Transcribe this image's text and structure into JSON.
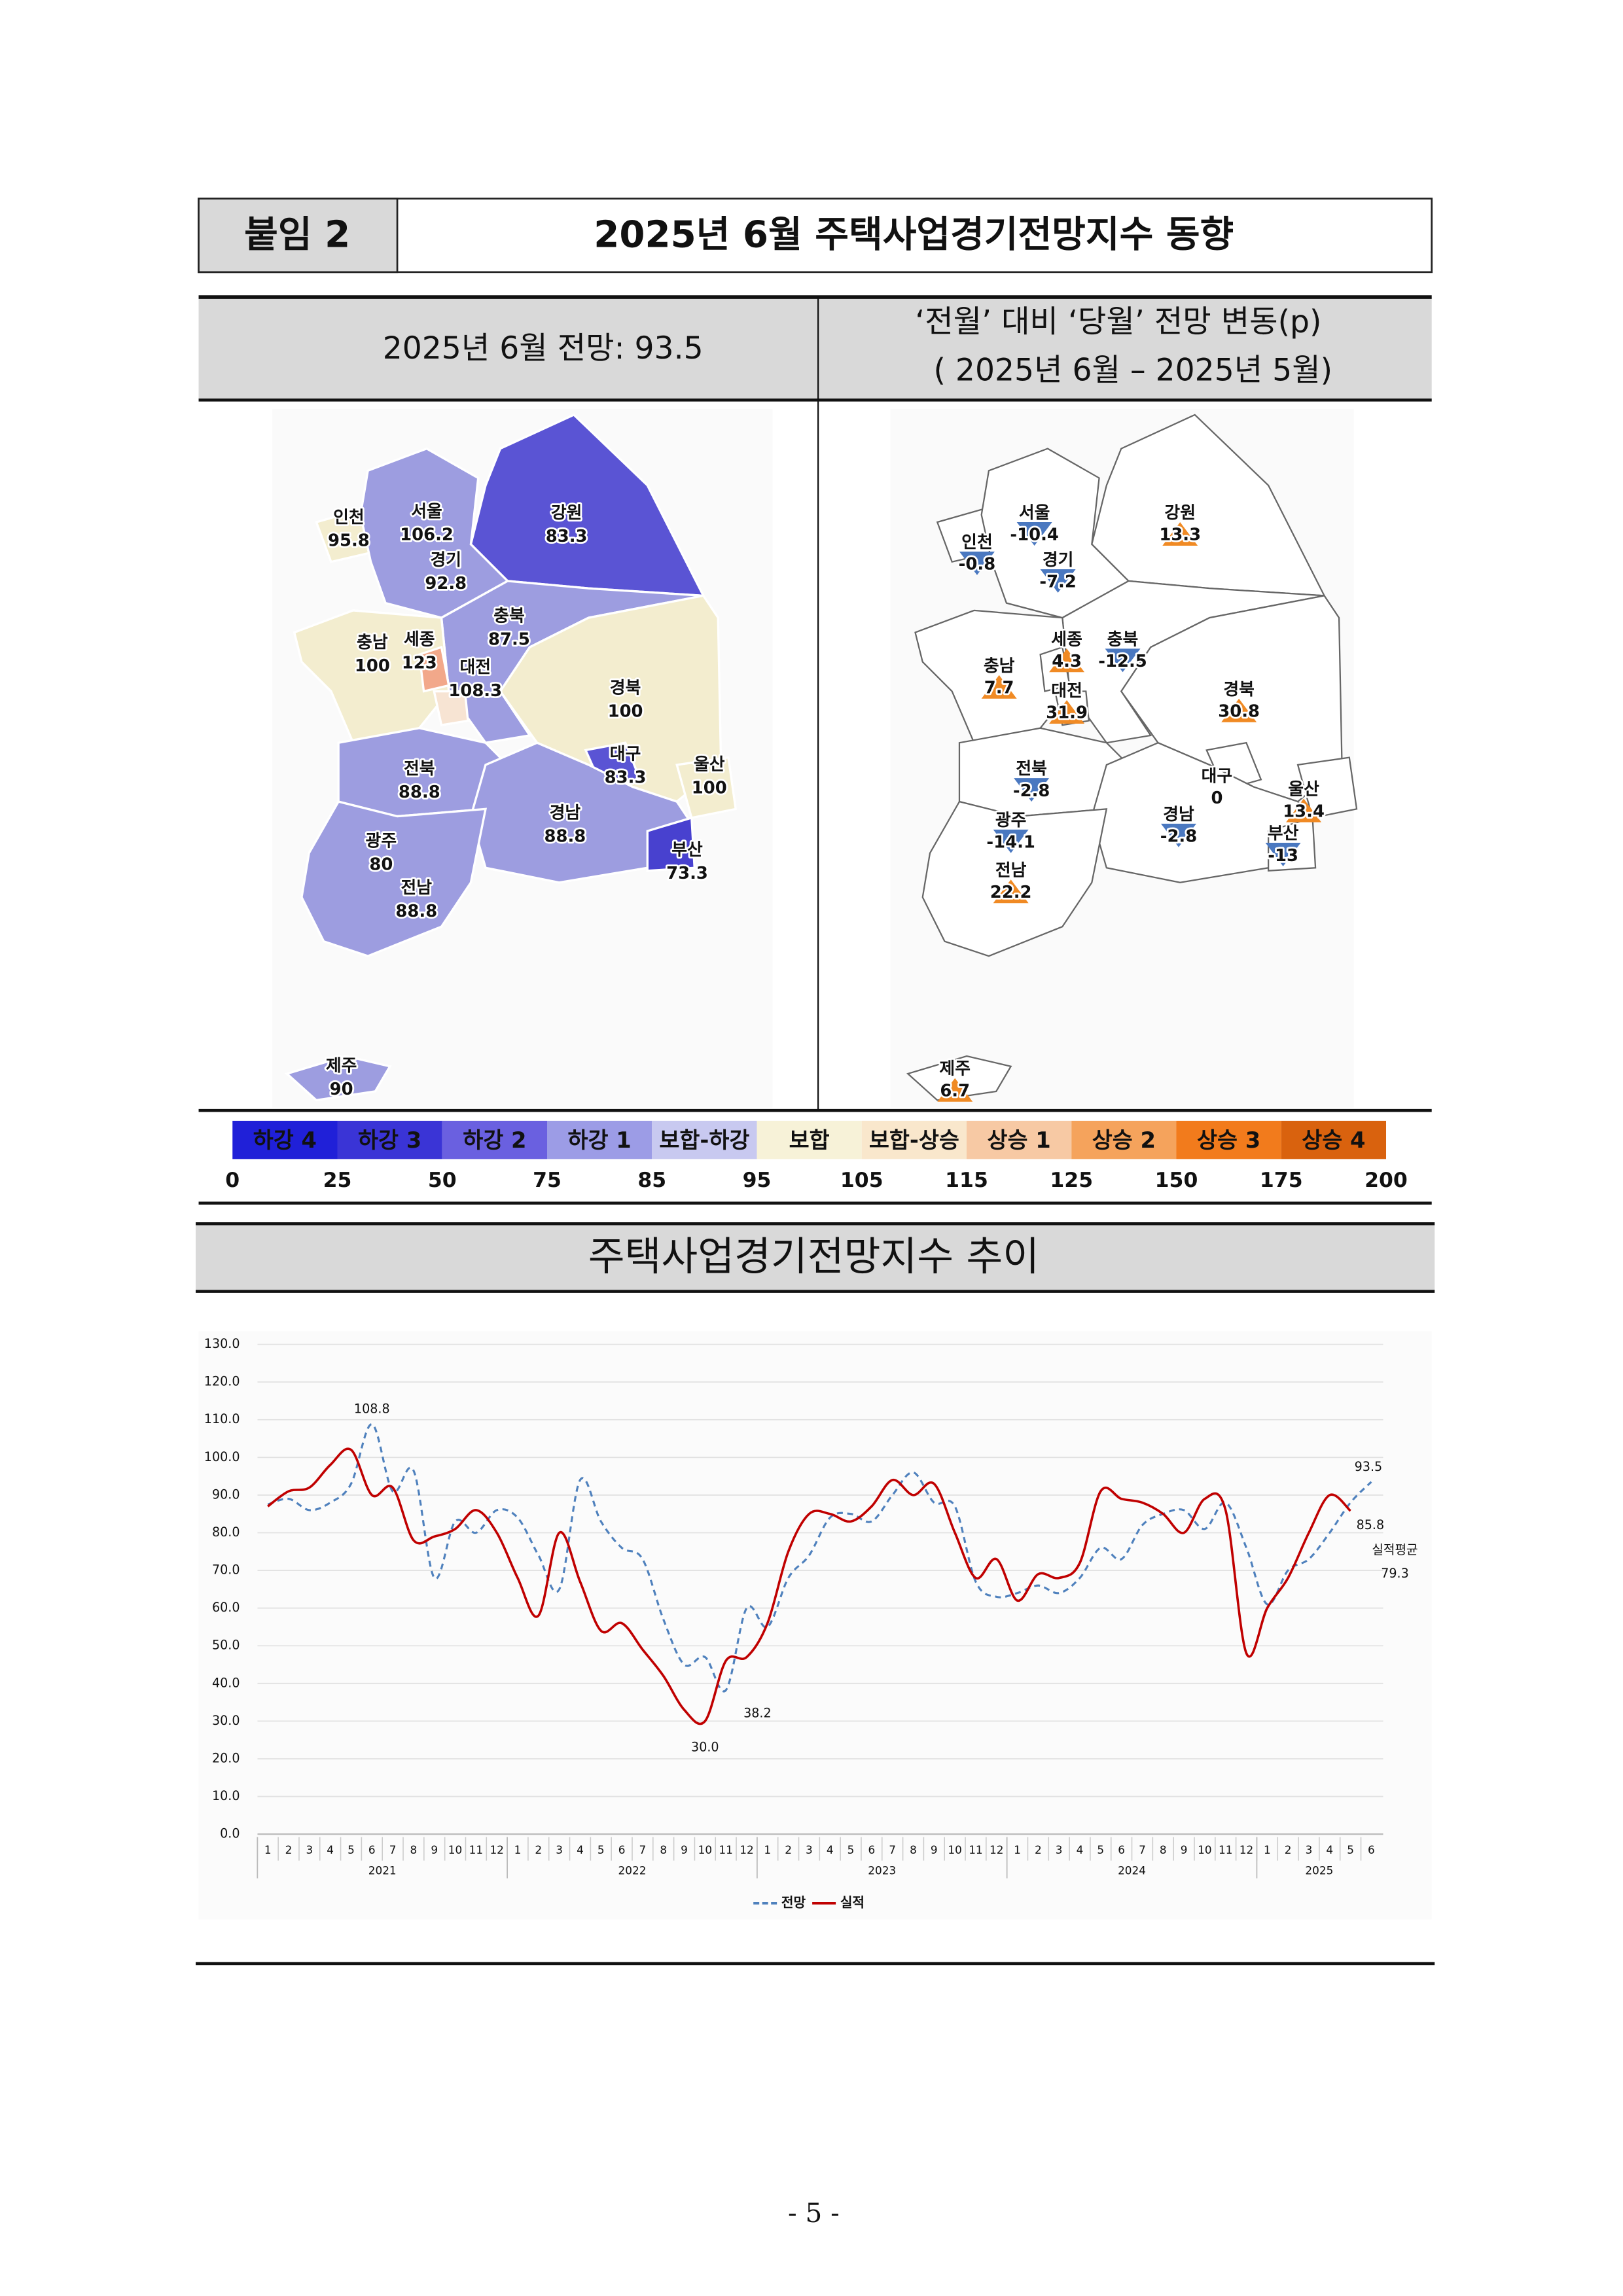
{
  "header": {
    "tag": "붙임 2",
    "title": "2025년 6월 주택사업경기전망지수 동향"
  },
  "table": {
    "left_title": "2025년 6월 전망: 93.5",
    "right_title": [
      "‘전월’ 대비 ‘당월’ 전망 변동(p)",
      "( 2025년 6월 –  2025년 5월)"
    ]
  },
  "map_left": {
    "regions": [
      {
        "name": "인천",
        "value": 95.8,
        "color": "#f3edcf"
      },
      {
        "name": "서울",
        "value": 106.2,
        "color": "#a3a3e2"
      },
      {
        "name": "경기",
        "value": 92.8,
        "color": "#9d9de0"
      },
      {
        "name": "강원",
        "value": 83.3,
        "color": "#5a54d4"
      },
      {
        "name": "충북",
        "value": 87.5,
        "color": "#9d9de0"
      },
      {
        "name": "충남",
        "value": 100,
        "color": "#f3edcf"
      },
      {
        "name": "세종",
        "value": 123,
        "color": "#f2a88a"
      },
      {
        "name": "대전",
        "value": 108.3,
        "color": "#f7e4d3"
      },
      {
        "name": "경북",
        "value": 100,
        "color": "#f3edcf"
      },
      {
        "name": "대구",
        "value": 83.3,
        "color": "#5a54d4"
      },
      {
        "name": "울산",
        "value": 100,
        "color": "#f3edcf"
      },
      {
        "name": "전북",
        "value": 88.8,
        "color": "#9d9de0"
      },
      {
        "name": "경남",
        "value": 88.8,
        "color": "#9d9de0"
      },
      {
        "name": "부산",
        "value": 73.3,
        "color": "#4841cf"
      },
      {
        "name": "광주",
        "value": 80,
        "color": "#5a54d4"
      },
      {
        "name": "전남",
        "value": 88.8,
        "color": "#9d9de0"
      },
      {
        "name": "제주",
        "value": 90,
        "color": "#9d9de0"
      }
    ]
  },
  "map_right": {
    "up_color": "#f08a24",
    "down_color": "#4a78c0",
    "regions": [
      {
        "name": "서울",
        "value": -10.4
      },
      {
        "name": "인천",
        "value": -0.8
      },
      {
        "name": "경기",
        "value": -7.2
      },
      {
        "name": "강원",
        "value": 13.3
      },
      {
        "name": "세종",
        "value": 4.3
      },
      {
        "name": "충북",
        "value": -12.5
      },
      {
        "name": "충남",
        "value": 7.7
      },
      {
        "name": "대전",
        "value": 31.9
      },
      {
        "name": "경북",
        "value": 30.8
      },
      {
        "name": "전북",
        "value": -2.8
      },
      {
        "name": "대구",
        "value": 0
      },
      {
        "name": "울산",
        "value": 13.4
      },
      {
        "name": "광주",
        "value": -14.1
      },
      {
        "name": "경남",
        "value": -2.8
      },
      {
        "name": "부산",
        "value": -13
      },
      {
        "name": "전남",
        "value": 22.2
      },
      {
        "name": "제주",
        "value": 6.7
      }
    ]
  },
  "legend": {
    "bins": [
      {
        "name": "하강 4",
        "color": "#2020d8"
      },
      {
        "name": "하강 3",
        "color": "#3a34d6"
      },
      {
        "name": "하강 2",
        "color": "#6a60e0"
      },
      {
        "name": "하강 1",
        "color": "#9c9ce6"
      },
      {
        "name": "보합-하강",
        "color": "#c8c9f0"
      },
      {
        "name": "보합",
        "color": "#f7f2d8"
      },
      {
        "name": "보합-상승",
        "color": "#f9e7cc"
      },
      {
        "name": "상승 1",
        "color": "#f7c9a4"
      },
      {
        "name": "상승 2",
        "color": "#f5a35c"
      },
      {
        "name": "상승 3",
        "color": "#f27b1c"
      },
      {
        "name": "상승 4",
        "color": "#d9620e"
      }
    ],
    "bounds": [
      0,
      25,
      50,
      75,
      85,
      95,
      105,
      115,
      125,
      150,
      175,
      200
    ]
  },
  "section_title": "주택사업경기전망지수 추이",
  "chart_data": {
    "type": "line",
    "categories": [
      "1",
      "2",
      "3",
      "4",
      "5",
      "6",
      "7",
      "8",
      "9",
      "10",
      "11",
      "12",
      "1",
      "2",
      "3",
      "4",
      "5",
      "6",
      "7",
      "8",
      "9",
      "10",
      "11",
      "12",
      "1",
      "2",
      "3",
      "4",
      "5",
      "6",
      "7",
      "8",
      "9",
      "10",
      "11",
      "12",
      "1",
      "2",
      "3",
      "4",
      "5",
      "6",
      "7",
      "8",
      "9",
      "10",
      "11",
      "12",
      "1",
      "2",
      "3",
      "4",
      "5",
      "6"
    ],
    "x_groups": [
      "2021",
      "2022",
      "2023",
      "2024",
      "2025"
    ],
    "ylim": [
      0,
      130
    ],
    "yticks": [
      {
        "value": 0,
        "label": "0.0"
      },
      {
        "value": 10,
        "label": "10.0"
      },
      {
        "value": 20,
        "label": "20.0"
      },
      {
        "value": 30,
        "label": "30.0"
      },
      {
        "value": 40,
        "label": "40.0"
      },
      {
        "value": 50,
        "label": "50.0"
      },
      {
        "value": 60,
        "label": "60.0"
      },
      {
        "value": 70,
        "label": "70.0"
      },
      {
        "value": 80,
        "label": "80.0"
      },
      {
        "value": 90,
        "label": "90.0"
      },
      {
        "value": 100,
        "label": "100.0"
      },
      {
        "value": 110,
        "label": "110.0"
      },
      {
        "value": 120,
        "label": "120.0"
      },
      {
        "value": 130,
        "label": "130.0"
      }
    ],
    "grid": true,
    "series": [
      {
        "name": "전망",
        "color": "#4f81bd",
        "dash": true,
        "values": [
          87.5,
          89,
          86,
          88,
          93,
          108.8,
          91,
          96.5,
          68,
          83,
          80,
          86,
          84,
          74,
          65,
          94,
          83,
          76,
          73,
          57,
          45,
          47,
          38.2,
          60,
          55,
          68,
          74,
          84,
          85,
          83,
          90,
          96,
          88,
          87,
          67,
          63,
          64,
          66,
          64,
          68,
          76,
          73,
          82,
          85,
          86,
          81,
          88,
          76,
          61,
          70,
          73,
          80,
          88,
          93.5
        ],
        "value_labels": [
          null,
          null,
          null,
          null,
          null,
          "108.8",
          null,
          null,
          null,
          null,
          null,
          null,
          null,
          null,
          null,
          null,
          null,
          null,
          null,
          null,
          null,
          null,
          "38.2",
          null,
          null,
          null,
          null,
          null,
          null,
          null,
          null,
          null,
          null,
          null,
          null,
          null,
          null,
          null,
          null,
          null,
          null,
          null,
          null,
          null,
          null,
          null,
          null,
          null,
          null,
          null,
          null,
          null,
          null,
          "93.5"
        ]
      },
      {
        "name": "실적",
        "color": "#c00000",
        "dash": false,
        "values": [
          87,
          91,
          92,
          98,
          102,
          90,
          92,
          78,
          79,
          81,
          86,
          80,
          68,
          58,
          80,
          67,
          54,
          56,
          49,
          42,
          33,
          30,
          46,
          47,
          56,
          75,
          85,
          85,
          83,
          87,
          94,
          90,
          93,
          80,
          68,
          73,
          62,
          69,
          68,
          72,
          91,
          89,
          88,
          85,
          80,
          89,
          86,
          48,
          60,
          68,
          80,
          90,
          85.8,
          null
        ],
        "value_labels": [
          null,
          null,
          null,
          null,
          null,
          null,
          null,
          null,
          null,
          null,
          null,
          null,
          null,
          null,
          null,
          null,
          null,
          null,
          null,
          null,
          null,
          "30.0",
          null,
          null,
          null,
          null,
          null,
          null,
          null,
          null,
          null,
          null,
          null,
          null,
          null,
          null,
          null,
          null,
          null,
          null,
          null,
          null,
          null,
          null,
          null,
          null,
          null,
          null,
          null,
          null,
          null,
          null,
          "85.8",
          null
        ]
      }
    ],
    "average": {
      "label": "실적평균",
      "value": 79.3
    }
  },
  "footer": {
    "page": "- 5 -"
  }
}
